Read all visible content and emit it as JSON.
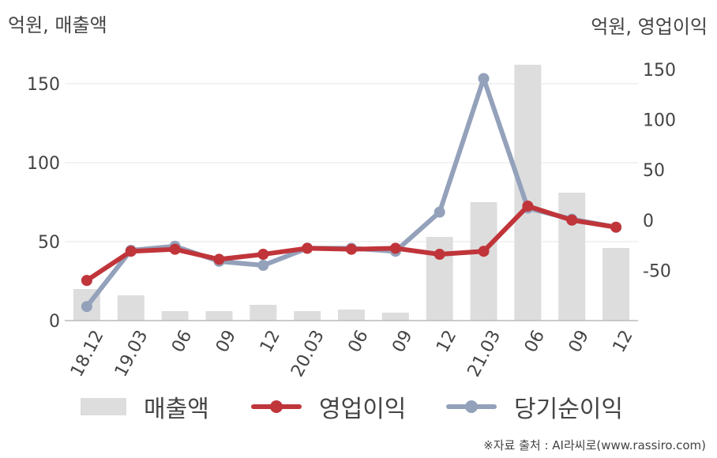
{
  "units": {
    "left": "억원, 매출액",
    "right": "억원, 영업이익"
  },
  "source": "※자료 출처 : AI라씨로(www.rassiro.com)",
  "colors": {
    "revenue": "#dddddd",
    "operating": "#c0353a",
    "net": "#94a1bb",
    "grid": "#e6e6e6",
    "axis": "#bbbbbb"
  },
  "legend": [
    "매출액",
    "영업이익",
    "당기순이익"
  ],
  "chart_data": {
    "type": "bar+line",
    "categories": [
      "18.12",
      "19.03",
      "06",
      "09",
      "12",
      "20.03",
      "06",
      "09",
      "12",
      "21.03",
      "06",
      "09",
      "12"
    ],
    "left_axis": {
      "ticks": [
        "0",
        "50",
        "100",
        "150"
      ],
      "ylim": [
        0,
        180
      ]
    },
    "right_axis": {
      "ticks": [
        "-50",
        "0",
        "50",
        "100",
        "150"
      ],
      "ylim": [
        -100,
        150
      ]
    },
    "series": [
      {
        "name": "매출액",
        "type": "bar",
        "axis": "left",
        "values": [
          20,
          16,
          6,
          6,
          10,
          6,
          7,
          5,
          53,
          75,
          162,
          81,
          46
        ]
      },
      {
        "name": "영업이익",
        "type": "line",
        "axis": "right",
        "values": [
          -60,
          -31,
          -29,
          -39,
          -34,
          -28,
          -29,
          -28,
          -34,
          -31,
          14,
          0,
          -7
        ]
      },
      {
        "name": "당기순이익",
        "type": "line",
        "axis": "right",
        "values": [
          -86,
          -30,
          -26,
          -41,
          -45,
          -28,
          -28,
          -31,
          8,
          141,
          12,
          1,
          -7
        ]
      }
    ]
  }
}
